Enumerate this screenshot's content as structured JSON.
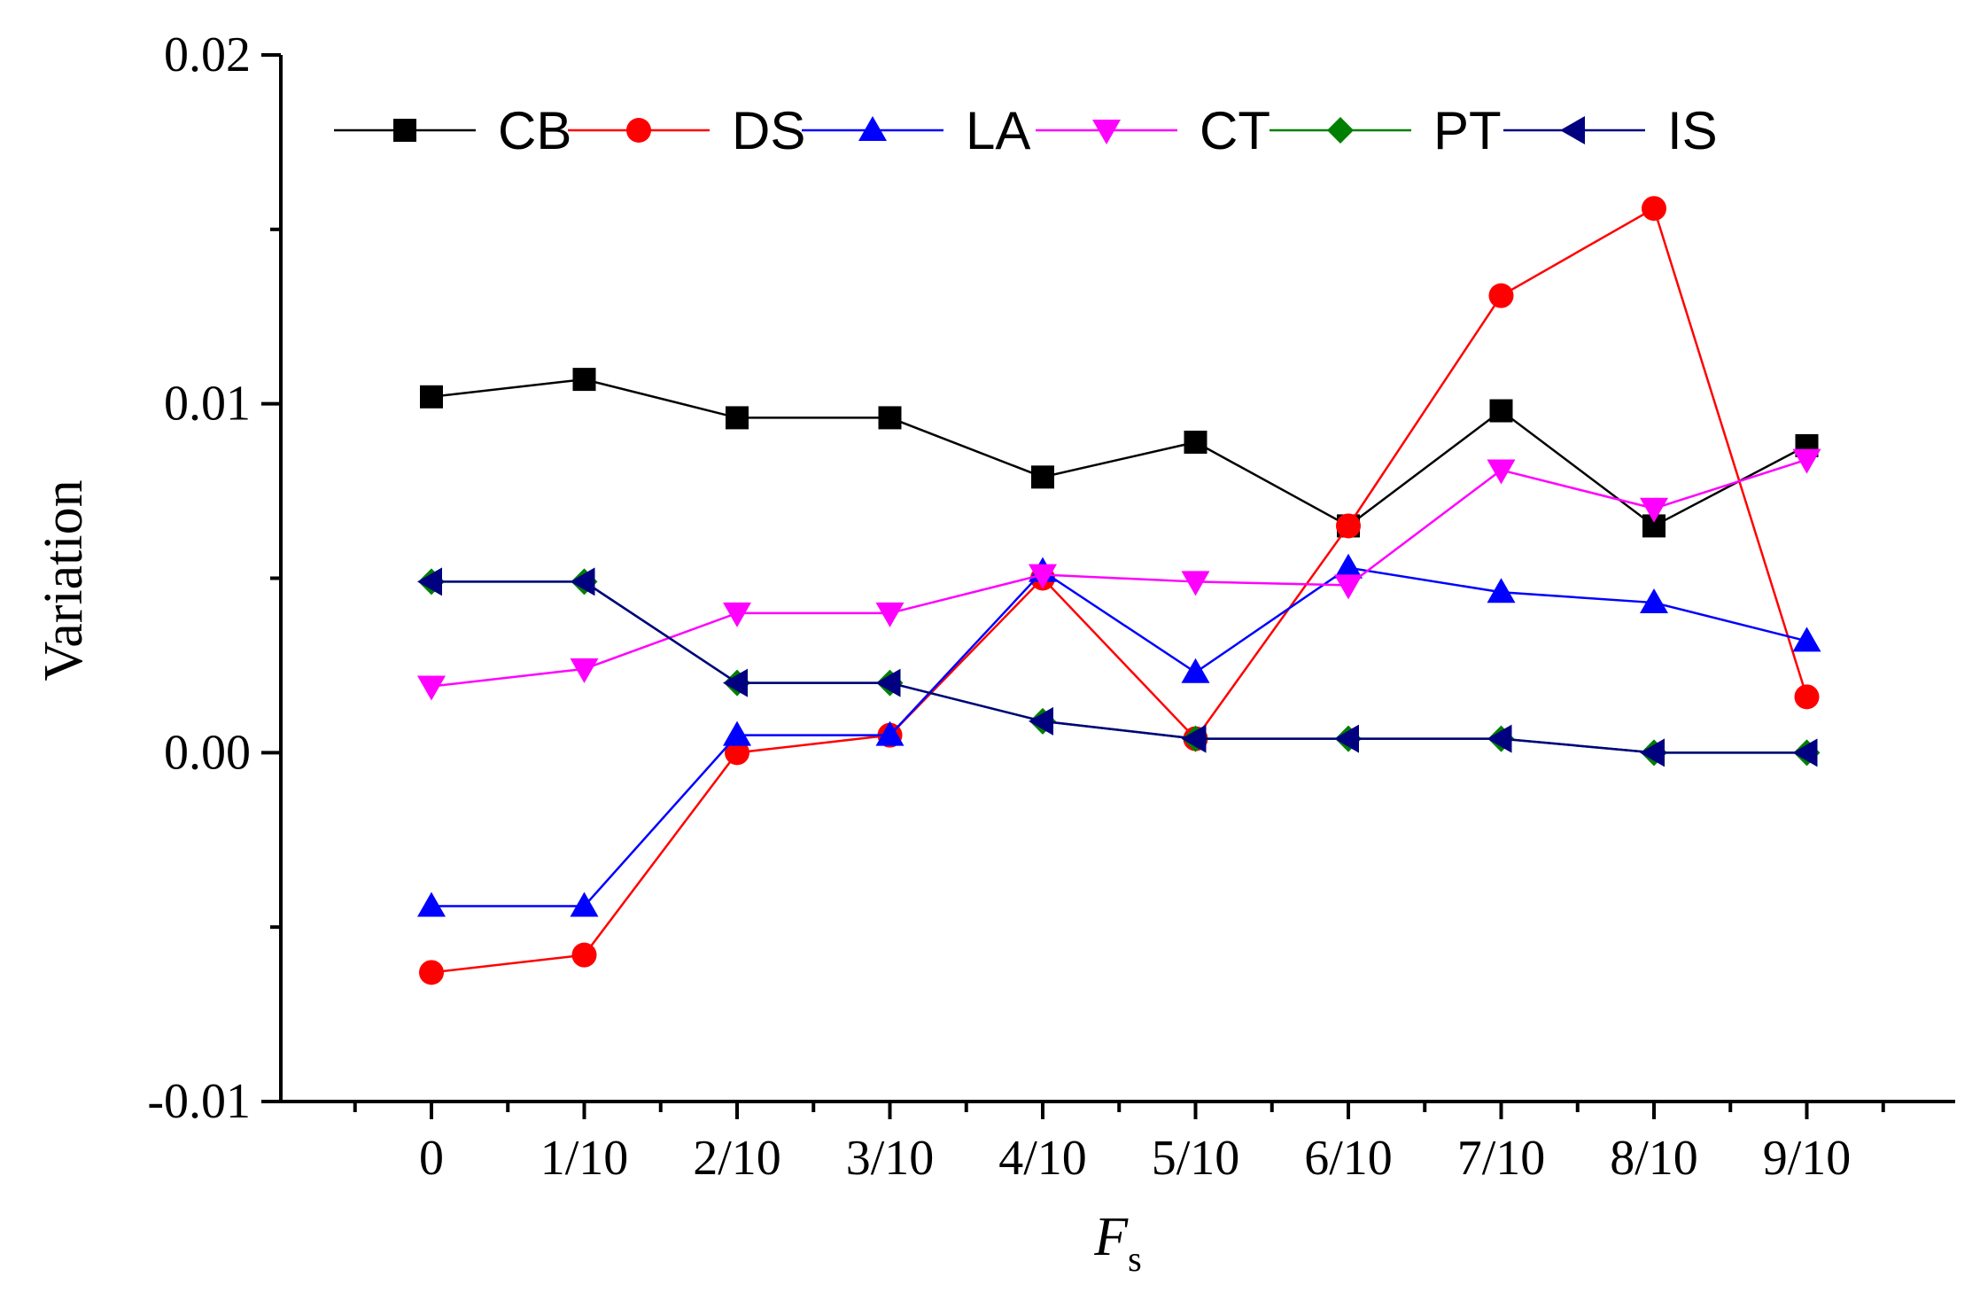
{
  "chart_data": {
    "type": "line",
    "title": "",
    "xlabel_main": "F",
    "xlabel_sub": "s",
    "ylabel": "Variation",
    "categories": [
      "0",
      "1/10",
      "2/10",
      "3/10",
      "4/10",
      "5/10",
      "6/10",
      "7/10",
      "8/10",
      "9/10"
    ],
    "ylim": [
      -0.01,
      0.02
    ],
    "yticks": [
      "-0.01",
      "0.00",
      "0.01",
      "0.02"
    ],
    "ytick_values": [
      -0.01,
      0.0,
      0.01,
      0.02
    ],
    "grid": false,
    "legend_position": "top",
    "series": [
      {
        "name": "CB",
        "color": "#000000",
        "marker": "square",
        "values": [
          0.0102,
          0.0107,
          0.0096,
          0.0096,
          0.0079,
          0.0089,
          0.0065,
          0.0098,
          0.0065,
          0.0088
        ]
      },
      {
        "name": "DS",
        "color": "#ff0000",
        "marker": "circle",
        "values": [
          -0.0063,
          -0.0058,
          0.0,
          0.0005,
          0.005,
          0.0004,
          0.0065,
          0.0131,
          0.0156,
          0.0016
        ]
      },
      {
        "name": "LA",
        "color": "#0000ff",
        "marker": "triangle-up",
        "values": [
          -0.0044,
          -0.0044,
          0.0005,
          0.0005,
          0.0052,
          0.0023,
          0.0053,
          0.0046,
          0.0043,
          0.0032
        ]
      },
      {
        "name": "CT",
        "color": "#ff00ff",
        "marker": "triangle-down",
        "values": [
          0.0019,
          0.0024,
          0.004,
          0.004,
          0.0051,
          0.0049,
          0.0048,
          0.0081,
          0.007,
          0.0084
        ]
      },
      {
        "name": "PT",
        "color": "#008000",
        "marker": "diamond",
        "values": [
          0.0049,
          0.0049,
          0.002,
          0.002,
          0.0009,
          0.0004,
          0.0004,
          0.0004,
          0.0,
          0.0
        ]
      },
      {
        "name": "IS",
        "color": "#000080",
        "marker": "triangle-left",
        "values": [
          0.0049,
          0.0049,
          0.002,
          0.002,
          0.0009,
          0.0004,
          0.0004,
          0.0004,
          0.0,
          0.0
        ]
      }
    ]
  }
}
